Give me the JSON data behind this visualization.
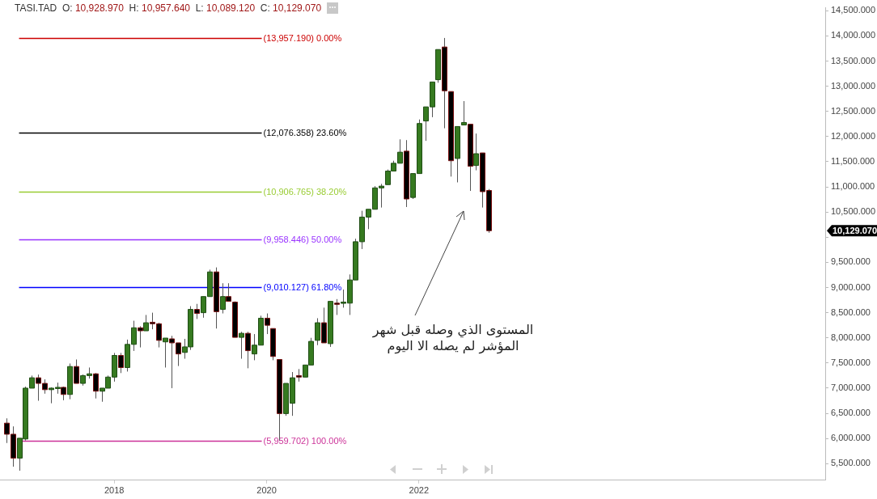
{
  "chart_data": {
    "type": "candlestick",
    "title": "TASI.TAD  O: 10,928.970  H: 10,957.640  L: 10,089.120  C: 10,129.070",
    "x": [
      "2016-08",
      "2016-09",
      "2016-10",
      "2016-11",
      "2016-12",
      "2017-01",
      "2017-02",
      "2017-03",
      "2017-04",
      "2017-05",
      "2017-06",
      "2017-07",
      "2017-08",
      "2017-09",
      "2017-10",
      "2017-11",
      "2017-12",
      "2018-01",
      "2018-02",
      "2018-03",
      "2018-04",
      "2018-05",
      "2018-06",
      "2018-07",
      "2018-08",
      "2018-09",
      "2018-10",
      "2018-11",
      "2018-12",
      "2019-01",
      "2019-02",
      "2019-03",
      "2019-04",
      "2019-05",
      "2019-06",
      "2019-07",
      "2019-08",
      "2019-09",
      "2019-10",
      "2019-11",
      "2019-12",
      "2020-01",
      "2020-02",
      "2020-03",
      "2020-04",
      "2020-05",
      "2020-06",
      "2020-07",
      "2020-08",
      "2020-09",
      "2020-10",
      "2020-11",
      "2020-12",
      "2021-01",
      "2021-02",
      "2021-03",
      "2021-04",
      "2021-05",
      "2021-06",
      "2021-07",
      "2021-08",
      "2021-09",
      "2021-10",
      "2021-11",
      "2021-12",
      "2022-01",
      "2022-02",
      "2022-03",
      "2022-04",
      "2022-05",
      "2022-06",
      "2022-07",
      "2022-08",
      "2022-09",
      "2022-10",
      "2022-11",
      "2022-12"
    ],
    "ohlc": [
      [
        6305,
        6400,
        5910,
        6084
      ],
      [
        6084,
        6240,
        5440,
        5610
      ],
      [
        5610,
        6005,
        5360,
        6005
      ],
      [
        5990,
        7030,
        5960,
        7000
      ],
      [
        7000,
        7250,
        7000,
        7206
      ],
      [
        7206,
        7270,
        6750,
        7095
      ],
      [
        7095,
        7175,
        6890,
        6970
      ],
      [
        6970,
        7016,
        6700,
        7000
      ],
      [
        7000,
        7110,
        6890,
        7016
      ],
      [
        7016,
        7030,
        6760,
        6875
      ],
      [
        6875,
        7490,
        6780,
        7430
      ],
      [
        7430,
        7570,
        7095,
        7095
      ],
      [
        7095,
        7270,
        7050,
        7250
      ],
      [
        7250,
        7410,
        7190,
        7285
      ],
      [
        7285,
        7300,
        6795,
        6940
      ],
      [
        6940,
        7000,
        6730,
        7000
      ],
      [
        7000,
        7250,
        7000,
        7220
      ],
      [
        7220,
        7700,
        7130,
        7650
      ],
      [
        7650,
        7700,
        7300,
        7410
      ],
      [
        7410,
        7965,
        7330,
        7870
      ],
      [
        7870,
        8340,
        7740,
        8200
      ],
      [
        8200,
        8230,
        7810,
        8140
      ],
      [
        8140,
        8455,
        8140,
        8300
      ],
      [
        8310,
        8500,
        8170,
        8280
      ],
      [
        8280,
        8300,
        7810,
        7950
      ],
      [
        7920,
        7995,
        7410,
        7995
      ],
      [
        7980,
        8040,
        7000,
        7900
      ],
      [
        7900,
        7900,
        7440,
        7680
      ],
      [
        7710,
        7980,
        7585,
        7820
      ],
      [
        7820,
        8630,
        7760,
        8565
      ],
      [
        8565,
        8675,
        8375,
        8485
      ],
      [
        8500,
        8820,
        8400,
        8820
      ],
      [
        8820,
        9355,
        8820,
        9310
      ],
      [
        9310,
        9400,
        8185,
        8520
      ],
      [
        8565,
        9085,
        8485,
        8820
      ],
      [
        8820,
        9085,
        8725,
        8725
      ],
      [
        8710,
        8725,
        8010,
        8010
      ],
      [
        8010,
        8120,
        7585,
        8090
      ],
      [
        8090,
        8120,
        7395,
        7745
      ],
      [
        7680,
        8075,
        7555,
        7855
      ],
      [
        7855,
        8440,
        7855,
        8390
      ],
      [
        8390,
        8485,
        8075,
        8250
      ],
      [
        8185,
        8185,
        7555,
        7630
      ],
      [
        7570,
        7570,
        5960,
        6495
      ],
      [
        6495,
        7095,
        6450,
        7095
      ],
      [
        6700,
        7320,
        6450,
        7206
      ],
      [
        7250,
        7380,
        7130,
        7220
      ],
      [
        7220,
        7460,
        7220,
        7460
      ],
      [
        7460,
        8000,
        7460,
        7930
      ],
      [
        7950,
        8390,
        7855,
        8300
      ],
      [
        8300,
        8600,
        7900,
        7900
      ],
      [
        7885,
        8725,
        7820,
        8725
      ],
      [
        8690,
        8770,
        8455,
        8675
      ],
      [
        8690,
        8960,
        8600,
        8710
      ],
      [
        8690,
        9260,
        8455,
        9150
      ],
      [
        9150,
        9970,
        9150,
        9910
      ],
      [
        9910,
        10525,
        9765,
        10400
      ],
      [
        10400,
        10555,
        10160,
        10555
      ],
      [
        10555,
        11015,
        10555,
        10980
      ],
      [
        10980,
        11060,
        10590,
        11015
      ],
      [
        11045,
        11345,
        11045,
        11315
      ],
      [
        11315,
        11520,
        11315,
        11470
      ],
      [
        11470,
        11945,
        11470,
        11690
      ],
      [
        11710,
        11930,
        10600,
        10760
      ],
      [
        10790,
        11265,
        10760,
        11265
      ],
      [
        11265,
        12340,
        11265,
        12260
      ],
      [
        12310,
        12590,
        11915,
        12590
      ],
      [
        12590,
        13085,
        12385,
        13085
      ],
      [
        13130,
        13730,
        13070,
        13730
      ],
      [
        13780,
        13960,
        12165,
        12910
      ],
      [
        12895,
        12895,
        11205,
        11520
      ],
      [
        11565,
        12200,
        11090,
        12200
      ],
      [
        12230,
        12705,
        12230,
        12280
      ],
      [
        12245,
        12245,
        10920,
        11410
      ],
      [
        11425,
        12060,
        11330,
        11660
      ],
      [
        11675,
        11675,
        10590,
        10905
      ],
      [
        10928.97,
        10957.64,
        10089.12,
        10129.07
      ]
    ],
    "xlim": [
      "2016-07",
      "2027-05"
    ],
    "xticks": [
      {
        "value": "2018-01",
        "label": "2018"
      },
      {
        "value": "2020-01",
        "label": "2020"
      },
      {
        "value": "2022-01",
        "label": "2022"
      }
    ],
    "ylim": [
      5170,
      14560
    ],
    "yticks": [
      {
        "value": 5500,
        "label": "5,500.000"
      },
      {
        "value": 6000,
        "label": "6,000.000"
      },
      {
        "value": 6500,
        "label": "6,500.000"
      },
      {
        "value": 7000,
        "label": "7,000.000"
      },
      {
        "value": 7500,
        "label": "7,500.000"
      },
      {
        "value": 8000,
        "label": "8,000.000"
      },
      {
        "value": 8500,
        "label": "8,500.000"
      },
      {
        "value": 9000,
        "label": "9,000.000"
      },
      {
        "value": 9500,
        "label": "9,500.000"
      },
      {
        "value": 10000,
        "label": null
      },
      {
        "value": 10500,
        "label": "10,500.000"
      },
      {
        "value": 11000,
        "label": "11,000.000"
      },
      {
        "value": 11500,
        "label": "11,500.000"
      },
      {
        "value": 12000,
        "label": "12,000.000"
      },
      {
        "value": 12500,
        "label": "12,500.000"
      },
      {
        "value": 13000,
        "label": "13,000.000"
      },
      {
        "value": 13500,
        "label": "13,500.000"
      },
      {
        "value": 14000,
        "label": "14,000.000"
      },
      {
        "value": 14500,
        "label": "14,500.000"
      }
    ],
    "ref_lines": [
      {
        "axis": "y",
        "value": 13957.19,
        "label": "(13,957.190) 0.00%",
        "color": "#cc0000"
      },
      {
        "axis": "y",
        "value": 12076.358,
        "label": "(12,076.358) 23.60%",
        "color": "#000000"
      },
      {
        "axis": "y",
        "value": 10906.765,
        "label": "(10,906.765) 38.20%",
        "color": "#99cc33"
      },
      {
        "axis": "y",
        "value": 9958.446,
        "label": "(9,958.446) 50.00%",
        "color": "#9933ff"
      },
      {
        "axis": "y",
        "value": 9010.127,
        "label": "(9,010.127) 61.80%",
        "color": "#0000ff"
      },
      {
        "axis": "y",
        "value": 5959.702,
        "label": "(5,959.702) 100.00%",
        "color": "#cc3399"
      }
    ],
    "annotations": [
      "10,129.070",
      "المستوى الذي وصله قبل شهر\nالمؤشر لم يصله الا اليوم"
    ],
    "grid": false,
    "legend": false
  }
}
